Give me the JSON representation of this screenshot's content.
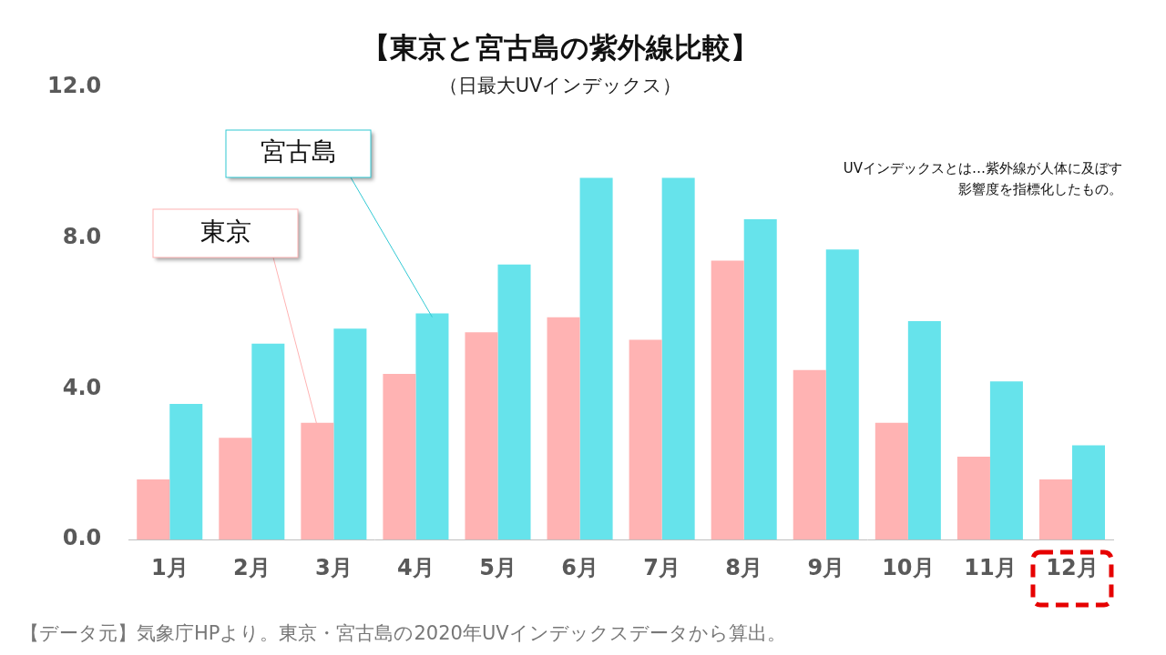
{
  "chart_data": {
    "type": "bar",
    "title": "【東京と宮古島の紫外線比較】",
    "subtitle": "（日最大UVインデックス）",
    "note": [
      "UVインデックスとは…紫外線が人体に及ぼす",
      "影響度を指標化したもの。"
    ],
    "source": "【データ元】気象庁HPより。東京・宮古島の2020年UVインデックスデータから算出。",
    "categories": [
      "1月",
      "2月",
      "3月",
      "4月",
      "5月",
      "6月",
      "7月",
      "8月",
      "9月",
      "10月",
      "11月",
      "12月"
    ],
    "series": [
      {
        "name": "東京",
        "color": "#ffb3b3",
        "values": [
          1.6,
          2.7,
          3.1,
          4.4,
          5.5,
          5.9,
          5.3,
          7.4,
          4.5,
          3.1,
          2.2,
          1.6
        ]
      },
      {
        "name": "宮古島",
        "color": "#66e3eb",
        "values": [
          3.6,
          5.2,
          5.6,
          6.0,
          7.3,
          9.6,
          9.6,
          8.5,
          7.7,
          5.8,
          4.2,
          2.5
        ]
      }
    ],
    "ylim": [
      0,
      12
    ],
    "yticks": [
      {
        "value": 0,
        "label": "0.0"
      },
      {
        "value": 4,
        "label": "4.0"
      },
      {
        "value": 8,
        "label": "8.0"
      },
      {
        "value": 12,
        "label": "12.0"
      }
    ],
    "grid": false,
    "data_labels": false
  }
}
